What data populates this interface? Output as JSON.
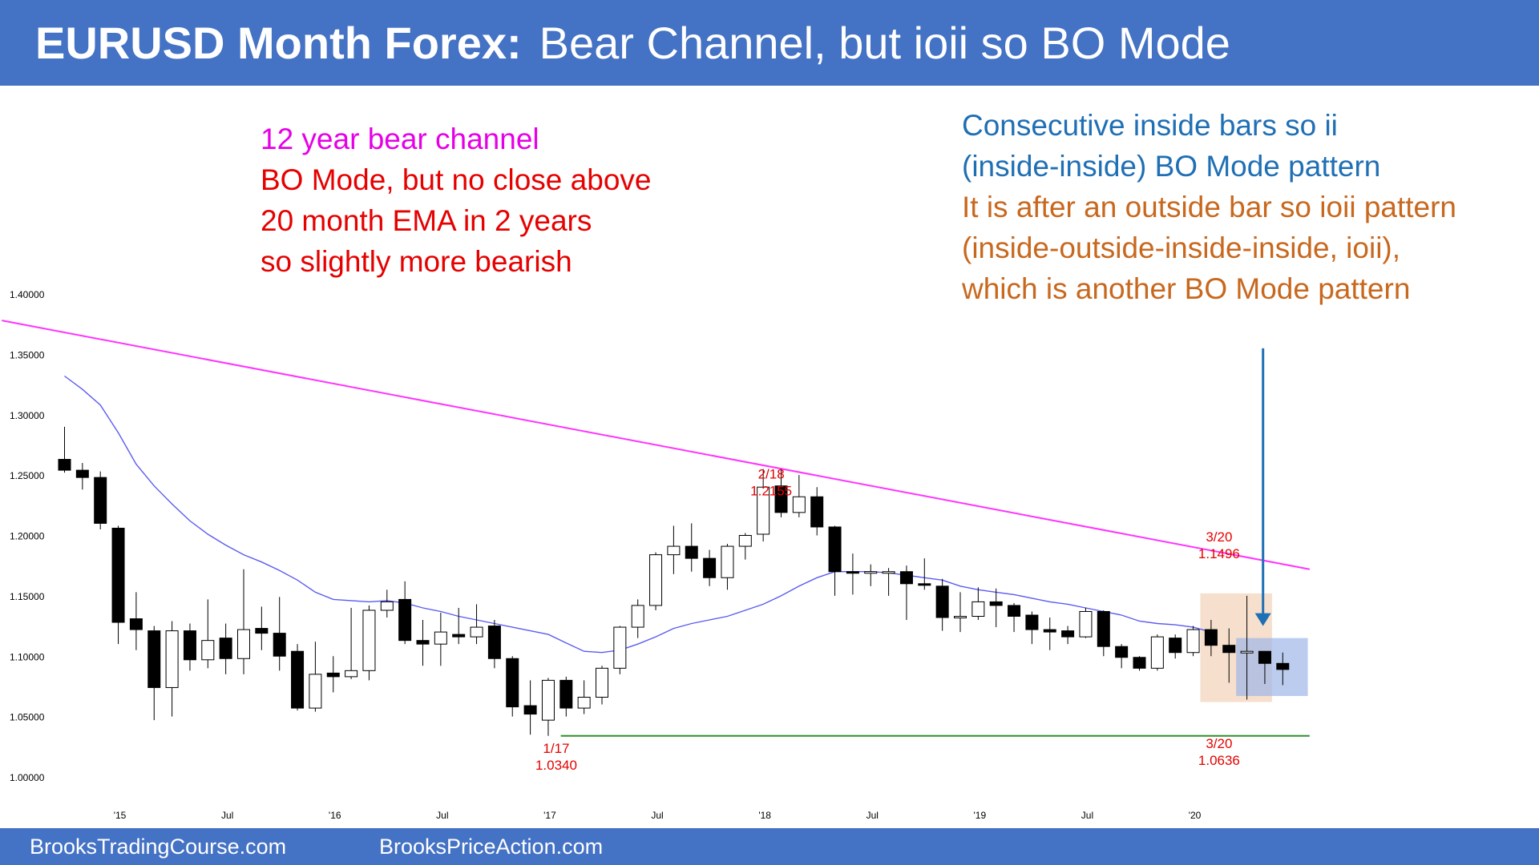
{
  "header": {
    "title_bold": "EURUSD Month Forex:",
    "title_rest": "Bear Channel, but ioii so BO Mode"
  },
  "footer": {
    "left": "BrooksTradingCourse.com",
    "right": "BrooksPriceAction.com"
  },
  "notes": {
    "left": [
      {
        "text": "12 year bear channel",
        "color": "#e600e6"
      },
      {
        "text": "BO Mode, but no close above",
        "color": "#e60000"
      },
      {
        "text": "20 month EMA in 2 years",
        "color": "#e60000"
      },
      {
        "text": "so slightly more bearish",
        "color": "#e60000"
      }
    ],
    "right": [
      {
        "text": "Consecutive inside bars so ii",
        "color": "#1f6fb4"
      },
      {
        "text": "(inside-inside) BO Mode pattern",
        "color": "#1f6fb4"
      },
      {
        "text": "It is after an outside bar so ioii pattern",
        "color": "#c8681e"
      },
      {
        "text": "(inside-outside-inside-inside, ioii),",
        "color": "#c8681e"
      },
      {
        "text": "which is another BO Mode pattern",
        "color": "#c8681e"
      }
    ]
  },
  "chart_data": {
    "type": "candlestick",
    "y_ticks": [
      "1.40000",
      "1.35000",
      "1.30000",
      "1.25000",
      "1.20000",
      "1.15000",
      "1.10000",
      "1.05000",
      "1.00000"
    ],
    "ylim": [
      1.0,
      1.4
    ],
    "x_ticks": [
      {
        "label": "'15",
        "i": 3
      },
      {
        "label": "Jul",
        "i": 9
      },
      {
        "label": "'16",
        "i": 15
      },
      {
        "label": "Jul",
        "i": 21
      },
      {
        "label": "'17",
        "i": 27
      },
      {
        "label": "Jul",
        "i": 33
      },
      {
        "label": "'18",
        "i": 39
      },
      {
        "label": "Jul",
        "i": 45
      },
      {
        "label": "'19",
        "i": 51
      },
      {
        "label": "Jul",
        "i": 57
      },
      {
        "label": "'20",
        "i": 63
      }
    ],
    "candles": [
      [
        1.263,
        1.254,
        1.29,
        1.252
      ],
      [
        1.254,
        1.248,
        1.26,
        1.238
      ],
      [
        1.248,
        1.21,
        1.253,
        1.205
      ],
      [
        1.206,
        1.128,
        1.208,
        1.11
      ],
      [
        1.131,
        1.122,
        1.153,
        1.105
      ],
      [
        1.121,
        1.074,
        1.125,
        1.047
      ],
      [
        1.074,
        1.121,
        1.129,
        1.05
      ],
      [
        1.121,
        1.097,
        1.127,
        1.088
      ],
      [
        1.097,
        1.113,
        1.147,
        1.09
      ],
      [
        1.115,
        1.098,
        1.127,
        1.085
      ],
      [
        1.098,
        1.122,
        1.172,
        1.085
      ],
      [
        1.123,
        1.119,
        1.141,
        1.105
      ],
      [
        1.119,
        1.1,
        1.149,
        1.088
      ],
      [
        1.104,
        1.057,
        1.11,
        1.055
      ],
      [
        1.057,
        1.085,
        1.112,
        1.054
      ],
      [
        1.086,
        1.083,
        1.1,
        1.07
      ],
      [
        1.083,
        1.088,
        1.14,
        1.081
      ],
      [
        1.088,
        1.138,
        1.142,
        1.08
      ],
      [
        1.138,
        1.145,
        1.155,
        1.132
      ],
      [
        1.147,
        1.113,
        1.162,
        1.11
      ],
      [
        1.113,
        1.11,
        1.13,
        1.092
      ],
      [
        1.11,
        1.12,
        1.136,
        1.092
      ],
      [
        1.118,
        1.116,
        1.14,
        1.11
      ],
      [
        1.116,
        1.124,
        1.143,
        1.11
      ],
      [
        1.125,
        1.098,
        1.13,
        1.09
      ],
      [
        1.098,
        1.058,
        1.1,
        1.05
      ],
      [
        1.059,
        1.052,
        1.08,
        1.035
      ],
      [
        1.047,
        1.08,
        1.082,
        1.034
      ],
      [
        1.08,
        1.057,
        1.083,
        1.05
      ],
      [
        1.057,
        1.066,
        1.08,
        1.052
      ],
      [
        1.066,
        1.09,
        1.092,
        1.06
      ],
      [
        1.09,
        1.124,
        1.125,
        1.085
      ],
      [
        1.124,
        1.142,
        1.147,
        1.115
      ],
      [
        1.142,
        1.184,
        1.186,
        1.138
      ],
      [
        1.184,
        1.191,
        1.208,
        1.168
      ],
      [
        1.191,
        1.181,
        1.21,
        1.17
      ],
      [
        1.181,
        1.165,
        1.188,
        1.158
      ],
      [
        1.165,
        1.191,
        1.193,
        1.155
      ],
      [
        1.191,
        1.2,
        1.202,
        1.18
      ],
      [
        1.201,
        1.24,
        1.255,
        1.195
      ],
      [
        1.241,
        1.219,
        1.255,
        1.215
      ],
      [
        1.219,
        1.232,
        1.25,
        1.215
      ],
      [
        1.232,
        1.207,
        1.24,
        1.2
      ],
      [
        1.207,
        1.17,
        1.208,
        1.15
      ],
      [
        1.17,
        1.169,
        1.185,
        1.151
      ],
      [
        1.169,
        1.17,
        1.176,
        1.158
      ],
      [
        1.17,
        1.17,
        1.173,
        1.15
      ],
      [
        1.17,
        1.16,
        1.175,
        1.13
      ],
      [
        1.16,
        1.159,
        1.181,
        1.155
      ],
      [
        1.158,
        1.132,
        1.164,
        1.121
      ],
      [
        1.133,
        1.133,
        1.153,
        1.12
      ],
      [
        1.133,
        1.145,
        1.157,
        1.13
      ],
      [
        1.145,
        1.142,
        1.156,
        1.124
      ],
      [
        1.142,
        1.133,
        1.144,
        1.12
      ],
      [
        1.134,
        1.122,
        1.137,
        1.11
      ],
      [
        1.122,
        1.12,
        1.132,
        1.105
      ],
      [
        1.121,
        1.116,
        1.125,
        1.11
      ],
      [
        1.116,
        1.137,
        1.14,
        1.115
      ],
      [
        1.137,
        1.108,
        1.138,
        1.1
      ],
      [
        1.108,
        1.099,
        1.11,
        1.09
      ],
      [
        1.099,
        1.09,
        1.1,
        1.088
      ],
      [
        1.09,
        1.116,
        1.118,
        1.088
      ],
      [
        1.115,
        1.103,
        1.118,
        1.098
      ],
      [
        1.103,
        1.122,
        1.125,
        1.1
      ],
      [
        1.122,
        1.109,
        1.13,
        1.1
      ],
      [
        1.109,
        1.103,
        1.123,
        1.078
      ],
      [
        1.103,
        1.104,
        1.15,
        1.064
      ],
      [
        1.104,
        1.094,
        1.101,
        1.077
      ],
      [
        1.094,
        1.089,
        1.103,
        1.076
      ]
    ],
    "ema_20": [
      1.332,
      1.321,
      1.308,
      1.285,
      1.259,
      1.241,
      1.226,
      1.212,
      1.201,
      1.192,
      1.184,
      1.178,
      1.171,
      1.163,
      1.153,
      1.147,
      1.146,
      1.145,
      1.146,
      1.144,
      1.14,
      1.137,
      1.133,
      1.13,
      1.127,
      1.124,
      1.121,
      1.118,
      1.111,
      1.104,
      1.103,
      1.105,
      1.11,
      1.116,
      1.123,
      1.127,
      1.13,
      1.133,
      1.138,
      1.143,
      1.15,
      1.158,
      1.165,
      1.17,
      1.17,
      1.17,
      1.169,
      1.167,
      1.165,
      1.163,
      1.158,
      1.155,
      1.153,
      1.151,
      1.148,
      1.145,
      1.143,
      1.14,
      1.137,
      1.134,
      1.129,
      1.127,
      1.126,
      1.124,
      1.12
    ],
    "trend_line": {
      "from": [
        -3.5,
        1.378
      ],
      "to": [
        69.5,
        1.172
      ]
    },
    "support_line": {
      "from": [
        27.7,
        1.034
      ],
      "to": [
        69.5,
        1.034
      ]
    },
    "annotations": [
      {
        "date": "2/18",
        "value": "1.2155",
        "i": 39,
        "y": 1.247,
        "color": "#e60000"
      },
      {
        "date": "1/17",
        "value": "1.0340",
        "i": 27,
        "y": 1.02,
        "color": "#e60000"
      },
      {
        "date": "3/20",
        "value": "1.1496",
        "i": 64,
        "y": 1.195,
        "color": "#e60000"
      },
      {
        "date": "3/20",
        "value": "1.0636",
        "i": 64,
        "y": 1.024,
        "color": "#e60000"
      }
    ],
    "highlight_boxes": [
      {
        "i_from": 63.4,
        "i_to": 67.4,
        "y_top": 1.152,
        "y_bottom": 1.062,
        "color": "#f5d9c3"
      },
      {
        "i_from": 65.4,
        "i_to": 69.4,
        "y_top": 1.115,
        "y_bottom": 1.067,
        "color": "#9fb6e8"
      }
    ],
    "arrow": {
      "i": 66.9,
      "y_from": 1.355,
      "y_to": 1.125,
      "color": "#1f6fb4"
    },
    "colors": {
      "trend_line": "#ff33ff",
      "ema": "#5b5bf2",
      "support": "#2f8f2f",
      "candle": "#000000"
    }
  }
}
